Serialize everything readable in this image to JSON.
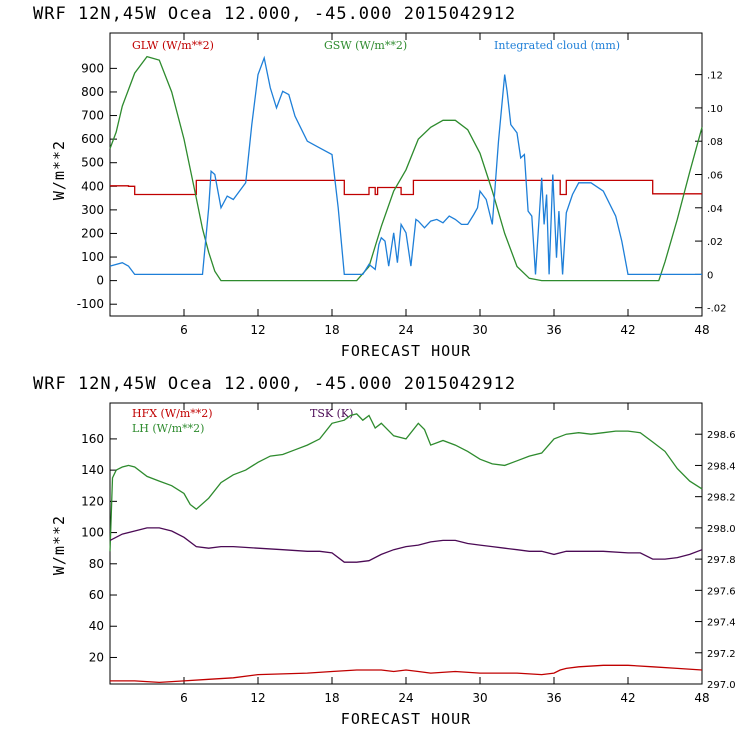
{
  "chart_data": [
    {
      "type": "line",
      "title": "WRF   12N,45W Ocea  12.000, -45.000  2015042912",
      "xlabel": "FORECAST HOUR",
      "ylabel": "W/m**2",
      "xlim": [
        0,
        48
      ],
      "ylim": [
        -150,
        1050
      ],
      "xticks": [
        6,
        12,
        18,
        24,
        30,
        36,
        42,
        48
      ],
      "yticks": [
        -100,
        0,
        100,
        200,
        300,
        400,
        500,
        600,
        700,
        800,
        900
      ],
      "y2lim": [
        -0.025,
        0.145
      ],
      "y2ticks": [
        -0.02,
        0,
        0.02,
        0.04,
        0.06,
        0.08,
        0.1,
        0.12
      ],
      "y2ticklabels": [
        "-.02",
        "0",
        ".02",
        ".04",
        ".06",
        ".08",
        ".10",
        ".12"
      ],
      "series": [
        {
          "name": "GLW (W/m**2)",
          "color": "#c00000",
          "axis": "left",
          "x": [
            0,
            1.5,
            2,
            6.5,
            7,
            18.5,
            19,
            20.8,
            21,
            21.5,
            21.7,
            23.3,
            23.6,
            24.3,
            24.6,
            36.2,
            36.5,
            37,
            43.8,
            44,
            48
          ],
          "y": [
            402,
            400,
            365,
            365,
            425,
            425,
            365,
            365,
            395,
            365,
            395,
            395,
            365,
            365,
            425,
            425,
            365,
            425,
            425,
            368,
            368
          ]
        },
        {
          "name": "GSW (W/m**2)",
          "color": "#2e8b2e",
          "axis": "left",
          "x": [
            0,
            0.5,
            1,
            2,
            3,
            4,
            5,
            6,
            7,
            7.5,
            8,
            8.5,
            9,
            20,
            21,
            22,
            23,
            24,
            25,
            26,
            27,
            28,
            29,
            30,
            31,
            32,
            33,
            34,
            35,
            44.5,
            45,
            46,
            47,
            48
          ],
          "y": [
            560,
            630,
            740,
            880,
            950,
            935,
            800,
            600,
            350,
            220,
            120,
            40,
            0,
            0,
            60,
            230,
            380,
            470,
            600,
            650,
            680,
            680,
            640,
            540,
            380,
            200,
            60,
            10,
            0,
            0,
            80,
            260,
            460,
            650
          ]
        },
        {
          "name": "Integrated cloud (mm)",
          "color": "#1e7fd8",
          "axis": "right",
          "x": [
            0,
            1,
            1.5,
            2,
            7.5,
            8,
            8.2,
            8.5,
            9,
            9.5,
            10,
            10.5,
            11,
            11.5,
            12,
            12.5,
            13,
            13.5,
            14,
            14.5,
            15,
            16,
            17,
            18,
            18.5,
            19,
            20.5,
            21,
            21.5,
            21.8,
            22,
            22.3,
            22.6,
            23,
            23.3,
            23.6,
            24,
            24.4,
            24.8,
            25,
            25.5,
            26,
            26.5,
            27,
            27.5,
            28,
            28.5,
            29,
            29.5,
            29.8,
            30,
            30.5,
            31,
            31.5,
            32,
            32.2,
            32.5,
            33,
            33.3,
            33.6,
            33.9,
            34.2,
            34.5,
            35,
            35.2,
            35.4,
            35.6,
            35.9,
            36.2,
            36.4,
            36.7,
            37,
            37.5,
            38,
            39,
            40,
            41,
            41.5,
            42,
            45,
            48
          ],
          "y": [
            0.005,
            0.007,
            0.005,
            0,
            0,
            0.04,
            0.062,
            0.06,
            0.04,
            0.047,
            0.045,
            0.05,
            0.055,
            0.09,
            0.12,
            0.13,
            0.112,
            0.1,
            0.11,
            0.108,
            0.095,
            0.08,
            0.076,
            0.072,
            0.04,
            0,
            0,
            0.006,
            0.003,
            0.018,
            0.022,
            0.02,
            0.005,
            0.025,
            0.007,
            0.03,
            0.025,
            0.005,
            0.033,
            0.032,
            0.028,
            0.032,
            0.033,
            0.031,
            0.035,
            0.033,
            0.03,
            0.03,
            0.036,
            0.04,
            0.05,
            0.045,
            0.03,
            0.08,
            0.12,
            0.11,
            0.09,
            0.085,
            0.07,
            0.072,
            0.038,
            0.035,
            0,
            0.058,
            0.03,
            0.048,
            0,
            0.06,
            0.01,
            0.038,
            0,
            0.037,
            0.048,
            0.055,
            0.055,
            0.05,
            0.035,
            0.02,
            0,
            0,
            0
          ]
        }
      ]
    },
    {
      "type": "line",
      "title": "WRF   12N,45W Ocea  12.000, -45.000  2015042912",
      "xlabel": "FORECAST HOUR",
      "ylabel": "W/m**2",
      "xlim": [
        0,
        48
      ],
      "ylim": [
        3,
        183
      ],
      "xticks": [
        6,
        12,
        18,
        24,
        30,
        36,
        42,
        48
      ],
      "yticks": [
        20,
        40,
        60,
        80,
        100,
        120,
        140,
        160
      ],
      "y2lim": [
        297.0,
        298.8
      ],
      "y2ticks": [
        297.0,
        297.2,
        297.4,
        297.6,
        297.8,
        298.0,
        298.2,
        298.4,
        298.6
      ],
      "y2ticklabels": [
        "297.0",
        "297.2",
        "297.4",
        "297.6",
        "297.8",
        "298.0",
        "298.2",
        "298.4",
        "298.6"
      ],
      "series": [
        {
          "name": "HFX (W/m**2)",
          "color": "#c00000",
          "axis": "left",
          "x": [
            0,
            2,
            4,
            6,
            8,
            10,
            12,
            14,
            16,
            18,
            20,
            22,
            23,
            24,
            25,
            26,
            28,
            30,
            33,
            35,
            36,
            36.5,
            37,
            38,
            40,
            42,
            44,
            46,
            48
          ],
          "y": [
            5,
            5,
            4,
            5,
            6,
            7,
            9,
            9.5,
            10,
            11,
            12,
            12,
            11,
            12,
            11,
            10,
            11,
            10,
            10,
            9,
            10,
            12,
            13,
            14,
            15,
            15,
            14,
            13,
            12
          ]
        },
        {
          "name": "LH (W/m**2)",
          "color": "#2e8b2e",
          "axis": "left",
          "x": [
            0,
            0.2,
            0.5,
            1,
            1.5,
            2,
            3,
            4,
            5,
            6,
            6.5,
            7,
            8,
            9,
            10,
            11,
            12,
            13,
            14,
            15,
            16,
            17,
            18,
            19,
            19.5,
            20,
            20.5,
            21,
            21.5,
            22,
            23,
            24,
            25,
            25.5,
            26,
            27,
            28,
            29,
            30,
            31,
            32,
            33,
            34,
            35,
            36,
            37,
            38,
            39,
            40,
            41,
            42,
            43,
            44,
            45,
            46,
            47,
            48
          ],
          "y": [
            88,
            135,
            140,
            142,
            143,
            142,
            136,
            133,
            130,
            125,
            118,
            115,
            122,
            132,
            137,
            140,
            145,
            149,
            150,
            153,
            156,
            160,
            170,
            172,
            175,
            176,
            172,
            175,
            167,
            170,
            162,
            160,
            170,
            166,
            156,
            159,
            156,
            152,
            147,
            144,
            143,
            146,
            149,
            151,
            160,
            163,
            164,
            163,
            164,
            165,
            165,
            164,
            158,
            152,
            141,
            133,
            128
          ]
        },
        {
          "name": "TSK (K)",
          "color": "#4b0a55",
          "axis": "right",
          "x": [
            0,
            1,
            2,
            3,
            4,
            5,
            6,
            7,
            8,
            9,
            10,
            12,
            14,
            16,
            17,
            18,
            19,
            20,
            21,
            22,
            23,
            24,
            25,
            26,
            27,
            28,
            29,
            30,
            31,
            32,
            33,
            34,
            35,
            36,
            37,
            38,
            40,
            42,
            43,
            44,
            45,
            46,
            47,
            48
          ],
          "y": [
            297.92,
            297.96,
            297.98,
            298.0,
            298.0,
            297.98,
            297.94,
            297.88,
            297.87,
            297.88,
            297.88,
            297.87,
            297.86,
            297.85,
            297.85,
            297.84,
            297.78,
            297.78,
            297.79,
            297.83,
            297.86,
            297.88,
            297.89,
            297.91,
            297.92,
            297.92,
            297.9,
            297.89,
            297.88,
            297.87,
            297.86,
            297.85,
            297.85,
            297.83,
            297.85,
            297.85,
            297.85,
            297.84,
            297.84,
            297.8,
            297.8,
            297.81,
            297.83,
            297.86
          ]
        }
      ]
    }
  ]
}
